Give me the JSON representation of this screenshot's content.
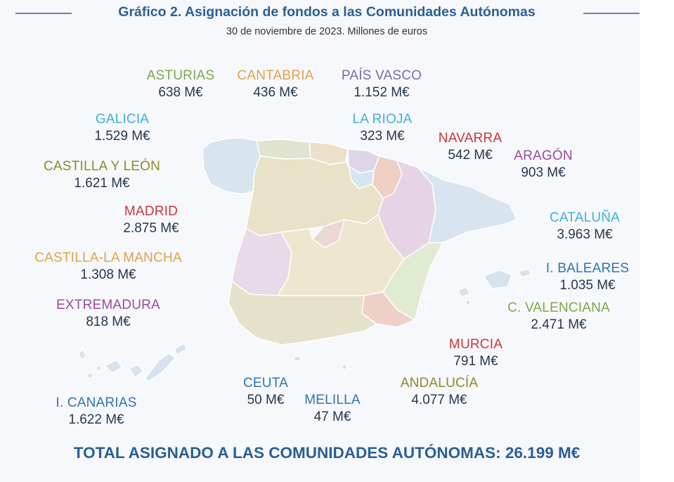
{
  "title": "Gráfico 2. Asignación de fondos a las Comunidades Autónomas",
  "subtitle": "30 de noviembre de 2023. Millones de euros",
  "regions": {
    "asturias": {
      "name": "ASTURIAS",
      "value": "638 M€",
      "color": "#7ea64a"
    },
    "cantabria": {
      "name": "CANTABRIA",
      "value": "436 M€",
      "color": "#dea24d"
    },
    "pais_vasco": {
      "name": "PAÍS VASCO",
      "value": "1.152 M€",
      "color": "#7b6aa8"
    },
    "galicia": {
      "name": "GALICIA",
      "value": "1.529 M€",
      "color": "#3fb0d9"
    },
    "la_rioja": {
      "name": "LA RIOJA",
      "value": "323 M€",
      "color": "#3fb0d9"
    },
    "navarra": {
      "name": "NAVARRA",
      "value": "542 M€",
      "color": "#c9373b"
    },
    "aragon": {
      "name": "ARAGÓN",
      "value": "903 M€",
      "color": "#9b4a9b"
    },
    "castilla_leon": {
      "name": "CASTILLA Y LEÓN",
      "value": "1.621 M€",
      "color": "#8c8a2a"
    },
    "madrid": {
      "name": "MADRID",
      "value": "2.875 M€",
      "color": "#c9373b"
    },
    "cataluna": {
      "name": "CATALUÑA",
      "value": "3.963 M€",
      "color": "#3fb0d9"
    },
    "castilla_mancha": {
      "name": "CASTILLA-LA MANCHA",
      "value": "1.308 M€",
      "color": "#dea24d"
    },
    "baleares": {
      "name": "I. BALEARES",
      "value": "1.035 M€",
      "color": "#2f73b6"
    },
    "extremadura": {
      "name": "EXTREMADURA",
      "value": "818 M€",
      "color": "#9b4a9b"
    },
    "valenciana": {
      "name": "C. VALENCIANA",
      "value": "2.471 M€",
      "color": "#7ea64a"
    },
    "murcia": {
      "name": "MURCIA",
      "value": "791 M€",
      "color": "#c9373b"
    },
    "ceuta": {
      "name": "CEUTA",
      "value": "50 M€",
      "color": "#2f73b6"
    },
    "melilla": {
      "name": "MELILLA",
      "value": "47 M€",
      "color": "#2f73b6"
    },
    "andalucia": {
      "name": "ANDALUCÍA",
      "value": "4.077 M€",
      "color": "#8c8a2a"
    },
    "canarias": {
      "name": "I. CANARIAS",
      "value": "1.622 M€",
      "color": "#2f73b6"
    }
  },
  "total": "TOTAL ASIGNADO A LAS COMUNIDADES AUTÓNOMAS: 26.199 M€"
}
